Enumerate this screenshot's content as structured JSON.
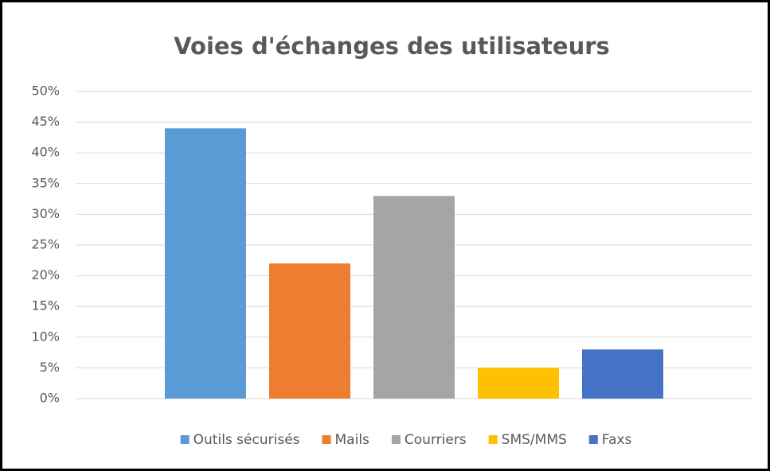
{
  "chart_data": {
    "type": "bar",
    "title": "Voies d'échanges des utilisateurs",
    "series": [
      {
        "name": "Outils sécurisés",
        "color": "#5b9bd5",
        "values": [
          44
        ]
      },
      {
        "name": "Mails",
        "color": "#ed7d31",
        "values": [
          22
        ]
      },
      {
        "name": "Courriers",
        "color": "#a5a5a5",
        "values": [
          33
        ]
      },
      {
        "name": "SMS/MMS",
        "color": "#ffc000",
        "values": [
          5
        ]
      },
      {
        "name": "Faxs",
        "color": "#4472c4",
        "values": [
          8
        ]
      }
    ],
    "ylim": [
      0,
      50
    ],
    "yticks": [
      {
        "value": 0,
        "label": "0%"
      },
      {
        "value": 5,
        "label": "5%"
      },
      {
        "value": 10,
        "label": "10%"
      },
      {
        "value": 15,
        "label": "15%"
      },
      {
        "value": 20,
        "label": "20%"
      },
      {
        "value": 25,
        "label": "25%"
      },
      {
        "value": 30,
        "label": "30%"
      },
      {
        "value": 35,
        "label": "35%"
      },
      {
        "value": 40,
        "label": "40%"
      },
      {
        "value": 45,
        "label": "45%"
      },
      {
        "value": 50,
        "label": "50%"
      }
    ],
    "grid": true,
    "legend": "bottom"
  }
}
